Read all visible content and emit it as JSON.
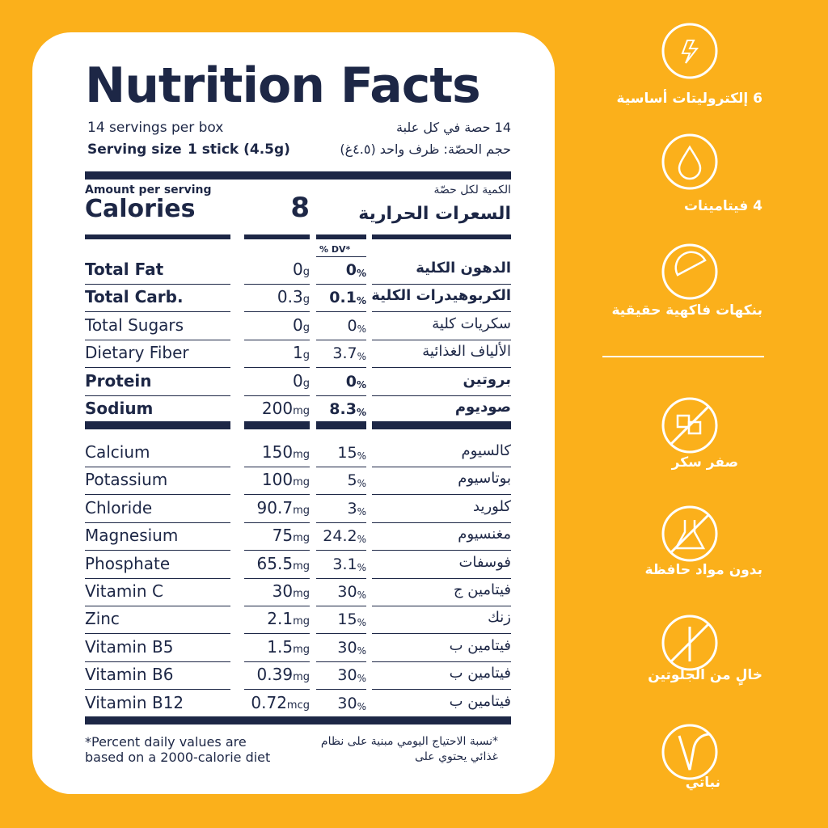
{
  "label": {
    "title": "Nutrition Facts",
    "servings_en": "14 servings per box",
    "servings_ar": "14 حصة في كل علبة",
    "serving_size_label": "Serving size",
    "serving_size_value": "1 stick (4.5g)",
    "serving_size_ar": "حجم الحصّة: ظرف واحد (٤.٥غ)",
    "amount_en": "Amount per serving",
    "calories_en": "Calories",
    "calories": "8",
    "amount_ar": "الكمية لكل حصّة",
    "calories_ar": "السعرات الحرارية",
    "dv_header": "% DV*",
    "rows": [
      {
        "name": "Total Fat",
        "amount": "0",
        "unit": "g",
        "dv": "0",
        "dv_unit": "%",
        "name_ar": "الدهون الكلية",
        "bold": true
      },
      {
        "name": "Total Carb.",
        "amount": "0.3",
        "unit": "g",
        "dv": "0.1",
        "dv_unit": "%",
        "name_ar": "الكربوهيدرات الكلية",
        "bold": true
      },
      {
        "name": "Total Sugars",
        "amount": "0",
        "unit": "g",
        "dv": "0",
        "dv_unit": "%",
        "name_ar": "سكريات كلية",
        "bold": false
      },
      {
        "name": "Dietary Fiber",
        "amount": "1",
        "unit": "g",
        "dv": "3.7",
        "dv_unit": "%",
        "name_ar": "الألياف الغذائية",
        "bold": false
      },
      {
        "name": "Protein",
        "amount": "0",
        "unit": "g",
        "dv": "0",
        "dv_unit": "%",
        "name_ar": "بروتين",
        "bold": true
      },
      {
        "name": "Sodium",
        "amount": "200",
        "unit": "mg",
        "dv": "8.3",
        "dv_unit": "%",
        "name_ar": "صوديوم",
        "bold": true
      }
    ],
    "minerals": [
      {
        "name": "Calcium",
        "amount": "150",
        "unit": "mg",
        "dv": "15",
        "dv_unit": "%",
        "name_ar": "كالسيوم"
      },
      {
        "name": "Potassium",
        "amount": "100",
        "unit": "mg",
        "dv": "5",
        "dv_unit": "%",
        "name_ar": "بوتاسيوم"
      },
      {
        "name": "Chloride",
        "amount": "90.7",
        "unit": "mg",
        "dv": "3",
        "dv_unit": "%",
        "name_ar": "كلوريد"
      },
      {
        "name": "Magnesium",
        "amount": "75",
        "unit": "mg",
        "dv": "24.2",
        "dv_unit": "%",
        "name_ar": "مغنسيوم"
      },
      {
        "name": "Phosphate",
        "amount": "65.5",
        "unit": "mg",
        "dv": "3.1",
        "dv_unit": "%",
        "name_ar": "فوسفات"
      },
      {
        "name": "Vitamin C",
        "amount": "30",
        "unit": "mg",
        "dv": "30",
        "dv_unit": "%",
        "name_ar": "فيتامين ج"
      },
      {
        "name": "Zinc",
        "amount": "2.1",
        "unit": "mg",
        "dv": "15",
        "dv_unit": "%",
        "name_ar": "زنك"
      },
      {
        "name": "Vitamin B5",
        "amount": "1.5",
        "unit": "mg",
        "dv": "30",
        "dv_unit": "%",
        "name_ar": "فيتامين ب"
      },
      {
        "name": "Vitamin B6",
        "amount": "0.39",
        "unit": "mg",
        "dv": "30",
        "dv_unit": "%",
        "name_ar": "فيتامين ب"
      },
      {
        "name": "Vitamin B12",
        "amount": "0.72",
        "unit": "mcg",
        "dv": "30",
        "dv_unit": "%",
        "name_ar": "فيتامين ب"
      }
    ],
    "footnote_en": [
      "*Percent daily values are",
      "based on a 2000-calorie diet"
    ],
    "footnote_ar": [
      "*نسبة الاحتياج اليومي مبنية على نظام",
      "غذائي يحتوي على"
    ]
  },
  "features": [
    "6 إلكتروليتات أساسية",
    "4 فيتامينات",
    "بنكهات فاكهية حقيقية"
  ],
  "claims": [
    "صفر سكر",
    "بدون مواد حافظة",
    "خالٍ من الجلوتين",
    "نباتي"
  ]
}
